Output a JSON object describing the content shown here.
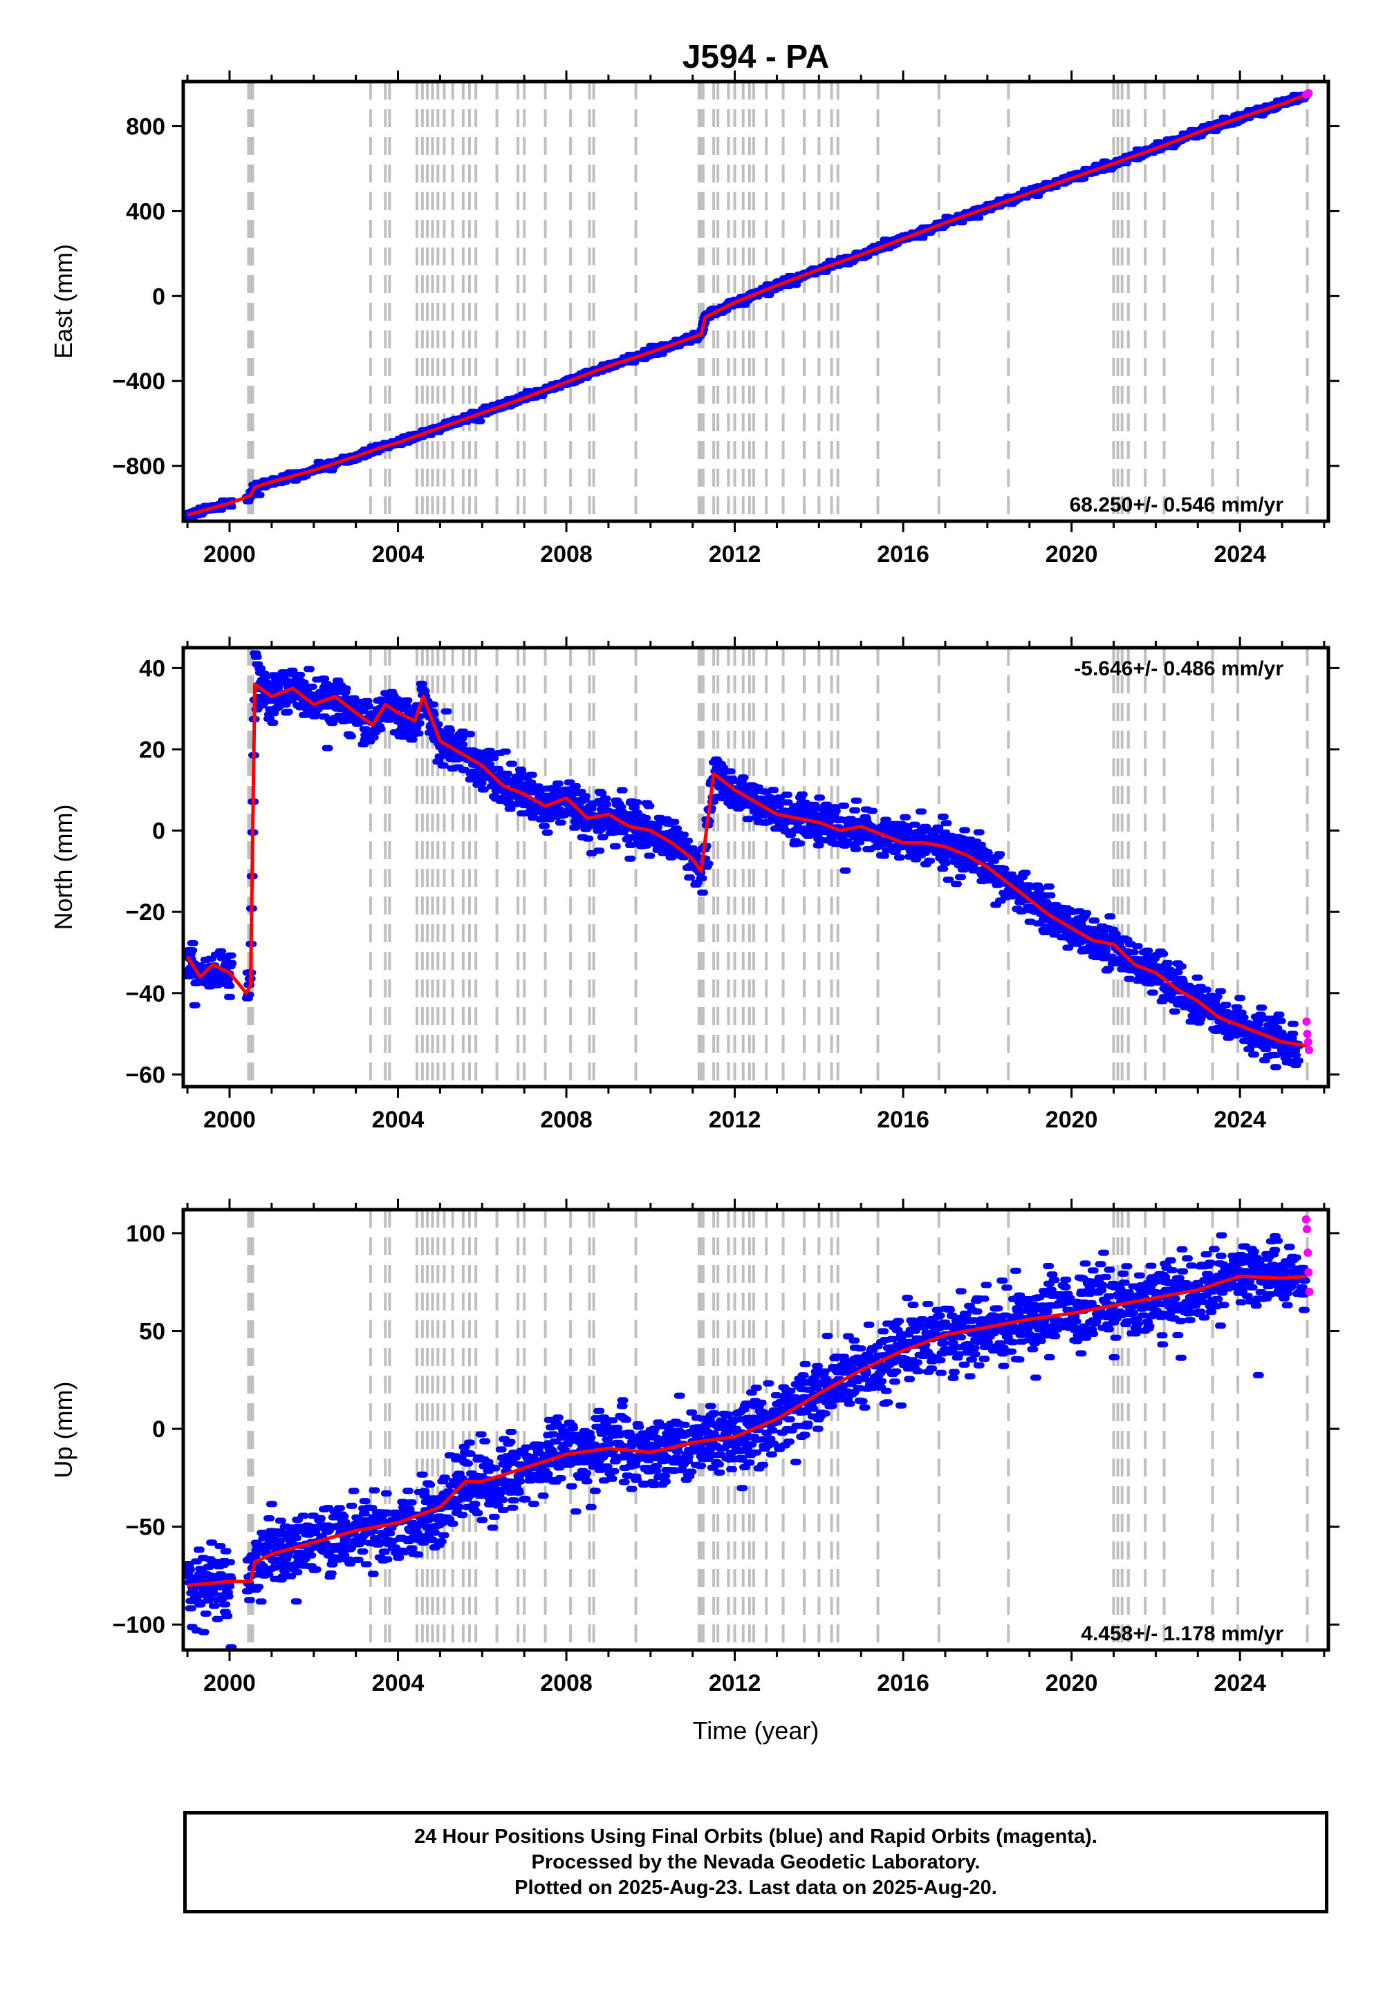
{
  "title": "J594 - PA",
  "colors": {
    "final_orbits": "#0000ff",
    "rapid_orbits": "#ff00ff",
    "model": "#ff0000",
    "step_lines": "#bfbfbf",
    "frame": "#000000"
  },
  "xaxis": {
    "label": "Time (year)",
    "range": [
      1998.9,
      2026.1
    ],
    "ticks": [
      2000,
      2004,
      2008,
      2012,
      2016,
      2020,
      2024
    ],
    "tick_labels": [
      "2000",
      "2004",
      "2008",
      "2012",
      "2016",
      "2020",
      "2024"
    ],
    "minor_step": 1
  },
  "step_lines": [
    2000.45,
    2000.5,
    2000.55,
    2003.35,
    2003.7,
    2003.8,
    2004.45,
    2004.58,
    2004.7,
    2004.82,
    2004.95,
    2005.1,
    2005.3,
    2005.55,
    2005.7,
    2005.85,
    2006.35,
    2006.85,
    2007.0,
    2007.5,
    2008.1,
    2008.55,
    2008.65,
    2009.65,
    2011.15,
    2011.2,
    2011.25,
    2011.5,
    2011.6,
    2011.85,
    2012.0,
    2012.2,
    2012.35,
    2012.45,
    2012.75,
    2013.15,
    2013.65,
    2014.0,
    2014.3,
    2014.45,
    2015.4,
    2016.85,
    2018.5,
    2021.0,
    2021.1,
    2021.2,
    2021.35,
    2021.75,
    2022.2,
    2023.35,
    2023.95,
    2025.6
  ],
  "chart_data": [
    {
      "type": "scatter",
      "panel": "east",
      "ylabel": "East (mm)",
      "ylim": [
        -1060,
        1010
      ],
      "yticks": [
        -800,
        -400,
        0,
        400,
        800
      ],
      "ytick_labels": [
        "−800",
        "−400",
        "0",
        "400",
        "800"
      ],
      "rate_text": "68.250+/- 0.546 mm/yr",
      "rate_position": "bottom-right",
      "series": [
        {
          "name": "Final Orbits",
          "color": "blue",
          "x": [
            1999.0,
            2000.0,
            2000.5,
            2000.6,
            2001.0,
            2002.0,
            2003.0,
            2003.5,
            2004.0,
            2005.0,
            2006.0,
            2007.0,
            2008.0,
            2009.0,
            2010.0,
            2011.0,
            2011.2,
            2011.3,
            2012.0,
            2013.0,
            2014.0,
            2015.0,
            2016.0,
            2017.0,
            2018.0,
            2019.0,
            2020.0,
            2021.0,
            2022.0,
            2023.0,
            2024.0,
            2025.0,
            2025.55
          ],
          "y": [
            -1030,
            -975,
            -940,
            -900,
            -875,
            -820,
            -755,
            -720,
            -690,
            -620,
            -550,
            -480,
            -405,
            -330,
            -265,
            -195,
            -180,
            -100,
            -30,
            50,
            125,
            195,
            270,
            345,
            415,
            485,
            555,
            625,
            695,
            770,
            840,
            905,
            945
          ]
        },
        {
          "name": "Rapid Orbits",
          "color": "magenta",
          "x": [
            2025.57,
            2025.6,
            2025.63
          ],
          "y": [
            948,
            952,
            955
          ]
        }
      ],
      "model": {
        "x": [
          1999.0,
          2000.0,
          2000.5,
          2000.6,
          2001.0,
          2002.0,
          2003.0,
          2003.5,
          2004.0,
          2005.0,
          2006.0,
          2007.0,
          2008.0,
          2009.0,
          2010.0,
          2011.0,
          2011.2,
          2011.3,
          2012.0,
          2013.0,
          2014.0,
          2015.0,
          2016.0,
          2017.0,
          2018.0,
          2019.0,
          2020.0,
          2021.0,
          2022.0,
          2023.0,
          2024.0,
          2025.0,
          2025.6
        ],
        "y": [
          -1030,
          -975,
          -940,
          -900,
          -875,
          -820,
          -755,
          -720,
          -690,
          -620,
          -550,
          -480,
          -405,
          -330,
          -265,
          -195,
          -180,
          -100,
          -30,
          50,
          125,
          195,
          270,
          345,
          415,
          485,
          555,
          625,
          695,
          770,
          840,
          905,
          950
        ]
      },
      "noise_mm": 9
    },
    {
      "type": "scatter",
      "panel": "north",
      "ylabel": "North (mm)",
      "ylim": [
        -63,
        45
      ],
      "yticks": [
        -60,
        -40,
        -20,
        0,
        20,
        40
      ],
      "ytick_labels": [
        "−60",
        "−40",
        "−20",
        "0",
        "20",
        "40"
      ],
      "rate_text": "-5.646+/- 0.486 mm/yr",
      "rate_position": "top-right",
      "series": [
        {
          "name": "Final Orbits",
          "color": "blue",
          "x": [
            1999.0,
            1999.3,
            1999.6,
            2000.0,
            2000.4,
            2000.5,
            2000.6,
            2001.0,
            2001.5,
            2002.0,
            2002.5,
            2003.0,
            2003.4,
            2003.7,
            2004.0,
            2004.4,
            2004.6,
            2005.0,
            2005.5,
            2006.0,
            2006.5,
            2007.0,
            2007.5,
            2008.0,
            2008.5,
            2009.0,
            2009.5,
            2010.0,
            2010.5,
            2011.0,
            2011.2,
            2011.5,
            2012.0,
            2012.5,
            2013.0,
            2013.5,
            2014.0,
            2014.5,
            2015.0,
            2015.5,
            2016.0,
            2016.5,
            2017.0,
            2017.5,
            2018.0,
            2018.5,
            2019.0,
            2019.5,
            2020.0,
            2020.5,
            2021.0,
            2021.5,
            2022.0,
            2022.5,
            2023.0,
            2023.5,
            2024.0,
            2024.5,
            2025.0,
            2025.4
          ],
          "y": [
            -31,
            -36,
            -33,
            -35,
            -40,
            -38,
            36,
            33,
            35,
            31,
            33,
            29,
            26,
            31,
            29,
            27,
            33,
            22,
            19,
            16,
            11,
            9,
            6,
            8,
            3,
            4,
            1,
            0,
            -3,
            -7,
            -10,
            14,
            10,
            7,
            4,
            3,
            2,
            0,
            1,
            -1,
            -3,
            -3,
            -4,
            -6,
            -9,
            -13,
            -17,
            -21,
            -24,
            -27,
            -28,
            -33,
            -35,
            -39,
            -42,
            -46,
            -48,
            -50,
            -52,
            -55
          ]
        },
        {
          "name": "Rapid Orbits",
          "color": "magenta",
          "x": [
            2025.58,
            2025.6,
            2025.62,
            2025.64
          ],
          "y": [
            -47,
            -50,
            -52,
            -54
          ]
        }
      ],
      "model": {
        "x": [
          1999.0,
          1999.3,
          1999.6,
          2000.0,
          2000.4,
          2000.5,
          2000.6,
          2001.0,
          2001.5,
          2002.0,
          2002.5,
          2003.0,
          2003.4,
          2003.7,
          2004.0,
          2004.4,
          2004.6,
          2005.0,
          2005.5,
          2006.0,
          2006.5,
          2007.0,
          2007.5,
          2008.0,
          2008.5,
          2009.0,
          2009.5,
          2010.0,
          2010.5,
          2011.0,
          2011.2,
          2011.5,
          2012.0,
          2012.5,
          2013.0,
          2013.5,
          2014.0,
          2014.5,
          2015.0,
          2015.5,
          2016.0,
          2016.5,
          2017.0,
          2017.5,
          2018.0,
          2018.5,
          2019.0,
          2019.5,
          2020.0,
          2020.5,
          2021.0,
          2021.5,
          2022.0,
          2022.5,
          2023.0,
          2023.5,
          2024.0,
          2024.5,
          2025.0,
          2025.6
        ],
        "y": [
          -31,
          -36,
          -33,
          -35,
          -40,
          -38,
          36,
          33,
          35,
          31,
          33,
          29,
          26,
          31,
          29,
          27,
          33,
          22,
          19,
          16,
          11,
          9,
          6,
          8,
          3,
          4,
          1,
          0,
          -3,
          -7,
          -10,
          14,
          10,
          7,
          4,
          3,
          2,
          0,
          1,
          -1,
          -3,
          -3,
          -4,
          -6,
          -9,
          -13,
          -17,
          -21,
          -24,
          -27,
          -28,
          -33,
          -35,
          -39,
          -42,
          -46,
          -48,
          -50,
          -52,
          -53
        ]
      },
      "noise_mm": 2.6
    },
    {
      "type": "scatter",
      "panel": "up",
      "ylabel": "Up (mm)",
      "ylim": [
        -113,
        112
      ],
      "yticks": [
        -100,
        -50,
        0,
        50,
        100
      ],
      "ytick_labels": [
        "−100",
        "−50",
        "0",
        "50",
        "100"
      ],
      "rate_text": "4.458+/- 1.178 mm/yr",
      "rate_position": "bottom-right",
      "series": [
        {
          "name": "Final Orbits",
          "color": "blue",
          "x": [
            1999.0,
            2000.0,
            2000.5,
            2000.6,
            2001.0,
            2002.0,
            2003.0,
            2004.0,
            2005.0,
            2005.6,
            2006.0,
            2007.0,
            2008.0,
            2009.0,
            2010.0,
            2011.0,
            2012.0,
            2013.0,
            2014.0,
            2015.0,
            2016.0,
            2017.0,
            2018.0,
            2019.0,
            2020.0,
            2021.0,
            2022.0,
            2023.0,
            2024.0,
            2025.0,
            2025.55
          ],
          "y": [
            -80,
            -78,
            -78,
            -68,
            -64,
            -58,
            -52,
            -48,
            -40,
            -27,
            -27,
            -20,
            -13,
            -10,
            -12,
            -7,
            -4,
            5,
            18,
            30,
            40,
            48,
            52,
            56,
            59,
            63,
            67,
            71,
            78,
            77,
            78
          ]
        },
        {
          "name": "Rapid Orbits",
          "color": "magenta",
          "x": [
            2025.57,
            2025.59,
            2025.61,
            2025.63,
            2025.65
          ],
          "y": [
            107,
            102,
            90,
            80,
            70
          ]
        }
      ],
      "model": {
        "x": [
          1999.0,
          2000.0,
          2000.5,
          2000.6,
          2001.0,
          2002.0,
          2003.0,
          2004.0,
          2005.0,
          2005.6,
          2006.0,
          2007.0,
          2008.0,
          2009.0,
          2010.0,
          2011.0,
          2012.0,
          2013.0,
          2014.0,
          2015.0,
          2016.0,
          2017.0,
          2018.0,
          2019.0,
          2020.0,
          2021.0,
          2022.0,
          2023.0,
          2024.0,
          2025.0,
          2025.6
        ],
        "y": [
          -80,
          -78,
          -78,
          -68,
          -64,
          -58,
          -52,
          -48,
          -40,
          -27,
          -27,
          -20,
          -13,
          -10,
          -12,
          -7,
          -4,
          5,
          18,
          30,
          40,
          48,
          52,
          56,
          59,
          63,
          67,
          71,
          78,
          77,
          78
        ]
      },
      "noise_mm": 9
    }
  ],
  "caption": {
    "line1": "24 Hour Positions Using Final Orbits (blue) and Rapid Orbits (magenta).",
    "line2": "Processed by the Nevada Geodetic Laboratory.",
    "line3": "Plotted on 2025-Aug-23. Last data on 2025-Aug-20."
  }
}
